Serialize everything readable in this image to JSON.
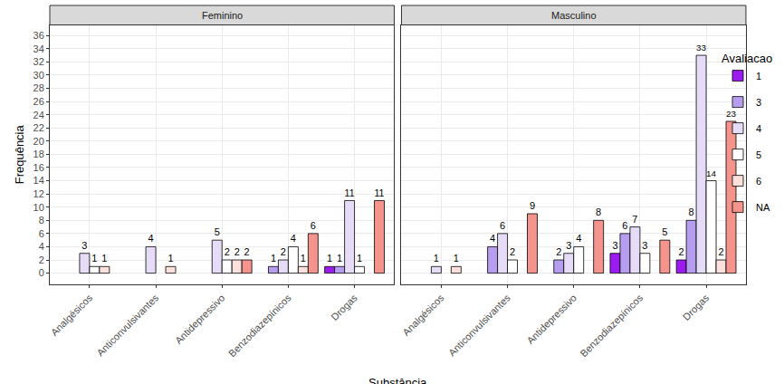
{
  "chart_data": {
    "type": "bar",
    "x_label": "Substância",
    "y_label": "Frequência",
    "legend_title": "Avaliacao",
    "legend": "right",
    "grid": true,
    "data_labels": true,
    "categories": [
      "Analgésicos",
      "Anticonvulsivantes",
      "Antidepressivo",
      "Benzodiazepínicos",
      "Drogas"
    ],
    "ylim": [
      -1.7,
      37.6
    ],
    "yticks": [
      0,
      2,
      4,
      6,
      8,
      10,
      12,
      14,
      16,
      18,
      20,
      22,
      24,
      26,
      28,
      30,
      32,
      34,
      36
    ],
    "facets": [
      {
        "title": "Feminino",
        "series": [
          {
            "name": "1",
            "color": "#9B1BF0",
            "values": [
              null,
              null,
              null,
              null,
              1
            ]
          },
          {
            "name": "3",
            "color": "#B69DF0",
            "values": [
              null,
              null,
              null,
              1,
              1
            ]
          },
          {
            "name": "4",
            "color": "#E6DCF7",
            "values": [
              3,
              4,
              5,
              2,
              11
            ]
          },
          {
            "name": "5",
            "color": "#FFFFFF",
            "values": [
              1,
              null,
              2,
              4,
              1
            ]
          },
          {
            "name": "6",
            "color": "#FCE0DC",
            "values": [
              1,
              1,
              2,
              1,
              null
            ]
          },
          {
            "name": "NA",
            "color": "#F4948C",
            "values": [
              null,
              null,
              2,
              6,
              11
            ]
          }
        ]
      },
      {
        "title": "Masculino",
        "series": [
          {
            "name": "1",
            "color": "#9B1BF0",
            "values": [
              null,
              null,
              null,
              3,
              2
            ]
          },
          {
            "name": "3",
            "color": "#B69DF0",
            "values": [
              null,
              4,
              2,
              6,
              8
            ]
          },
          {
            "name": "4",
            "color": "#E6DCF7",
            "values": [
              1,
              6,
              3,
              7,
              33
            ]
          },
          {
            "name": "5",
            "color": "#FFFFFF",
            "values": [
              null,
              2,
              4,
              3,
              14
            ]
          },
          {
            "name": "6",
            "color": "#FCE0DC",
            "values": [
              1,
              null,
              null,
              null,
              2
            ]
          },
          {
            "name": "NA",
            "color": "#F4948C",
            "values": [
              null,
              9,
              8,
              5,
              23
            ]
          }
        ]
      }
    ]
  }
}
